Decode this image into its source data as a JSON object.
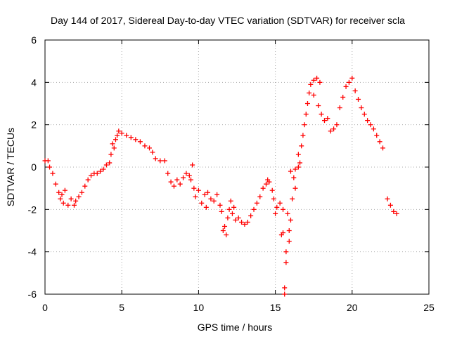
{
  "chart_data": {
    "type": "scatter",
    "title": "Day 144 of 2017, Sidereal Day-to-day VTEC variation (SDTVAR) for receiver scla",
    "xlabel": "GPS time / hours",
    "ylabel": "SDTVAR / TECUs",
    "xlim": [
      0,
      25
    ],
    "ylim": [
      -6,
      6
    ],
    "x_ticks": [
      0,
      5,
      10,
      15,
      20,
      25
    ],
    "y_ticks": [
      -6,
      -4,
      -2,
      0,
      2,
      4,
      6
    ],
    "x_tick_labels": [
      "0",
      "5",
      "10",
      "15",
      "20",
      "25"
    ],
    "y_tick_labels": [
      "-6",
      "-4",
      "-2",
      "0",
      "2",
      "4",
      "6"
    ],
    "grid": true,
    "marker": "+",
    "series": [
      {
        "name": "SDTVAR",
        "color": "#ff0000",
        "points": [
          [
            0.0,
            0.3
          ],
          [
            0.2,
            0.3
          ],
          [
            0.3,
            0.0
          ],
          [
            0.5,
            -0.3
          ],
          [
            0.7,
            -0.8
          ],
          [
            0.9,
            -1.2
          ],
          [
            1.0,
            -1.5
          ],
          [
            1.1,
            -1.3
          ],
          [
            1.2,
            -1.7
          ],
          [
            1.3,
            -1.1
          ],
          [
            1.5,
            -1.8
          ],
          [
            1.7,
            -1.5
          ],
          [
            1.9,
            -1.8
          ],
          [
            2.0,
            -1.6
          ],
          [
            2.2,
            -1.4
          ],
          [
            2.4,
            -1.2
          ],
          [
            2.6,
            -0.9
          ],
          [
            2.8,
            -0.6
          ],
          [
            3.0,
            -0.4
          ],
          [
            3.2,
            -0.3
          ],
          [
            3.4,
            -0.3
          ],
          [
            3.6,
            -0.2
          ],
          [
            3.8,
            -0.1
          ],
          [
            4.0,
            0.1
          ],
          [
            4.2,
            0.2
          ],
          [
            4.3,
            0.6
          ],
          [
            4.4,
            1.1
          ],
          [
            4.5,
            0.9
          ],
          [
            4.6,
            1.3
          ],
          [
            4.7,
            1.5
          ],
          [
            4.8,
            1.7
          ],
          [
            5.0,
            1.6
          ],
          [
            5.3,
            1.5
          ],
          [
            5.6,
            1.4
          ],
          [
            5.9,
            1.3
          ],
          [
            6.2,
            1.2
          ],
          [
            6.5,
            1.0
          ],
          [
            6.8,
            0.9
          ],
          [
            7.0,
            0.7
          ],
          [
            7.2,
            0.4
          ],
          [
            7.5,
            0.3
          ],
          [
            7.8,
            0.3
          ],
          [
            8.0,
            -0.3
          ],
          [
            8.2,
            -0.7
          ],
          [
            8.4,
            -0.9
          ],
          [
            8.6,
            -0.6
          ],
          [
            8.8,
            -0.8
          ],
          [
            9.0,
            -0.5
          ],
          [
            9.2,
            -0.3
          ],
          [
            9.4,
            -0.4
          ],
          [
            9.5,
            -0.6
          ],
          [
            9.6,
            0.1
          ],
          [
            9.7,
            -1.0
          ],
          [
            9.8,
            -1.4
          ],
          [
            10.0,
            -1.1
          ],
          [
            10.2,
            -1.7
          ],
          [
            10.4,
            -1.3
          ],
          [
            10.5,
            -1.9
          ],
          [
            10.6,
            -1.2
          ],
          [
            10.8,
            -1.5
          ],
          [
            11.0,
            -1.6
          ],
          [
            11.2,
            -1.3
          ],
          [
            11.4,
            -1.8
          ],
          [
            11.5,
            -2.1
          ],
          [
            11.6,
            -3.0
          ],
          [
            11.7,
            -2.8
          ],
          [
            11.8,
            -3.2
          ],
          [
            11.9,
            -2.4
          ],
          [
            12.0,
            -2.0
          ],
          [
            12.1,
            -1.6
          ],
          [
            12.2,
            -2.2
          ],
          [
            12.3,
            -1.9
          ],
          [
            12.4,
            -2.5
          ],
          [
            12.6,
            -2.4
          ],
          [
            12.8,
            -2.6
          ],
          [
            13.0,
            -2.7
          ],
          [
            13.2,
            -2.6
          ],
          [
            13.4,
            -2.3
          ],
          [
            13.6,
            -2.0
          ],
          [
            13.8,
            -1.7
          ],
          [
            14.0,
            -1.4
          ],
          [
            14.2,
            -1.0
          ],
          [
            14.4,
            -0.8
          ],
          [
            14.5,
            -0.6
          ],
          [
            14.6,
            -0.7
          ],
          [
            14.8,
            -1.1
          ],
          [
            14.9,
            -1.5
          ],
          [
            15.0,
            -2.2
          ],
          [
            15.1,
            -1.9
          ],
          [
            15.3,
            -1.7
          ],
          [
            15.5,
            -2.0
          ],
          [
            15.4,
            -3.2
          ],
          [
            15.5,
            -3.1
          ],
          [
            15.6,
            -6.0
          ],
          [
            15.6,
            -5.7
          ],
          [
            15.7,
            -4.5
          ],
          [
            15.7,
            -4.0
          ],
          [
            15.9,
            -3.5
          ],
          [
            15.9,
            -3.0
          ],
          [
            16.0,
            -2.5
          ],
          [
            15.8,
            -2.2
          ],
          [
            16.1,
            -1.5
          ],
          [
            16.0,
            -0.2
          ],
          [
            16.2,
            -0.5
          ],
          [
            16.3,
            -1.0
          ],
          [
            16.3,
            -0.1
          ],
          [
            16.5,
            0.0
          ],
          [
            16.5,
            0.6
          ],
          [
            16.7,
            1.0
          ],
          [
            16.6,
            0.2
          ],
          [
            16.8,
            1.5
          ],
          [
            16.9,
            2.0
          ],
          [
            17.0,
            2.5
          ],
          [
            17.1,
            3.0
          ],
          [
            17.2,
            3.5
          ],
          [
            17.3,
            3.9
          ],
          [
            17.5,
            4.1
          ],
          [
            17.7,
            4.2
          ],
          [
            17.9,
            4.0
          ],
          [
            17.5,
            3.4
          ],
          [
            17.8,
            2.9
          ],
          [
            18.0,
            2.5
          ],
          [
            18.2,
            2.2
          ],
          [
            18.4,
            2.3
          ],
          [
            18.6,
            1.7
          ],
          [
            18.8,
            1.8
          ],
          [
            19.0,
            2.0
          ],
          [
            19.2,
            2.8
          ],
          [
            19.4,
            3.3
          ],
          [
            19.6,
            3.8
          ],
          [
            19.8,
            4.0
          ],
          [
            20.0,
            4.2
          ],
          [
            20.2,
            3.6
          ],
          [
            20.4,
            3.2
          ],
          [
            20.6,
            2.8
          ],
          [
            20.8,
            2.5
          ],
          [
            21.0,
            2.2
          ],
          [
            21.2,
            2.0
          ],
          [
            21.4,
            1.8
          ],
          [
            21.6,
            1.5
          ],
          [
            21.8,
            1.2
          ],
          [
            22.0,
            0.9
          ],
          [
            22.3,
            -1.5
          ],
          [
            22.5,
            -1.8
          ],
          [
            22.7,
            -2.1
          ],
          [
            22.9,
            -2.2
          ]
        ]
      }
    ]
  }
}
